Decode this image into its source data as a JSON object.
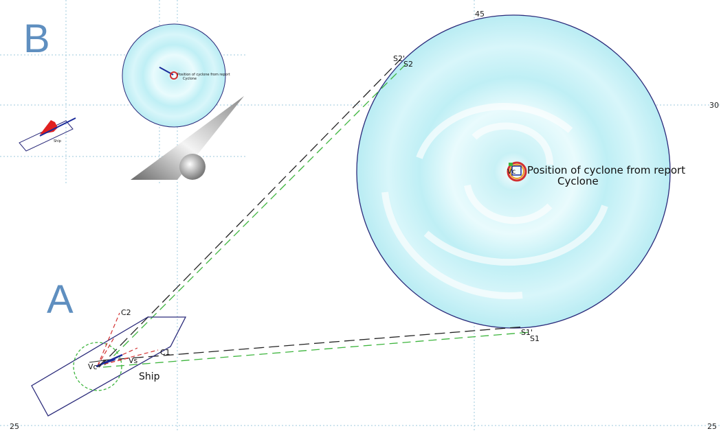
{
  "panels": {
    "a": "A",
    "b": "B"
  },
  "axis_labels": {
    "top_45": "45",
    "right_30": "30",
    "left_25": "25",
    "right_25": "25"
  },
  "cyclone": {
    "position_label": "Position of cyclone from report",
    "name": "Cyclone"
  },
  "ship": {
    "name": "Ship"
  },
  "points": {
    "s1": "S1",
    "s1_prime": "S1'",
    "s2": "S2",
    "s2_prime": "S2'",
    "c1": "C1",
    "c2": "C2",
    "vs": "Vs",
    "vc": "Vc"
  },
  "inset": {
    "position_label": "Position of cyclone from report",
    "name": "Cyclone",
    "ship": "Ship"
  },
  "colors": {
    "grid": "#9cc9dc",
    "outline": "#2a2a7a",
    "tangent_black": "#222222",
    "tangent_green": "#3cb43c",
    "course_red": "#d23030",
    "cloud": "#bfeff5",
    "heading": "#1a2a9a"
  }
}
